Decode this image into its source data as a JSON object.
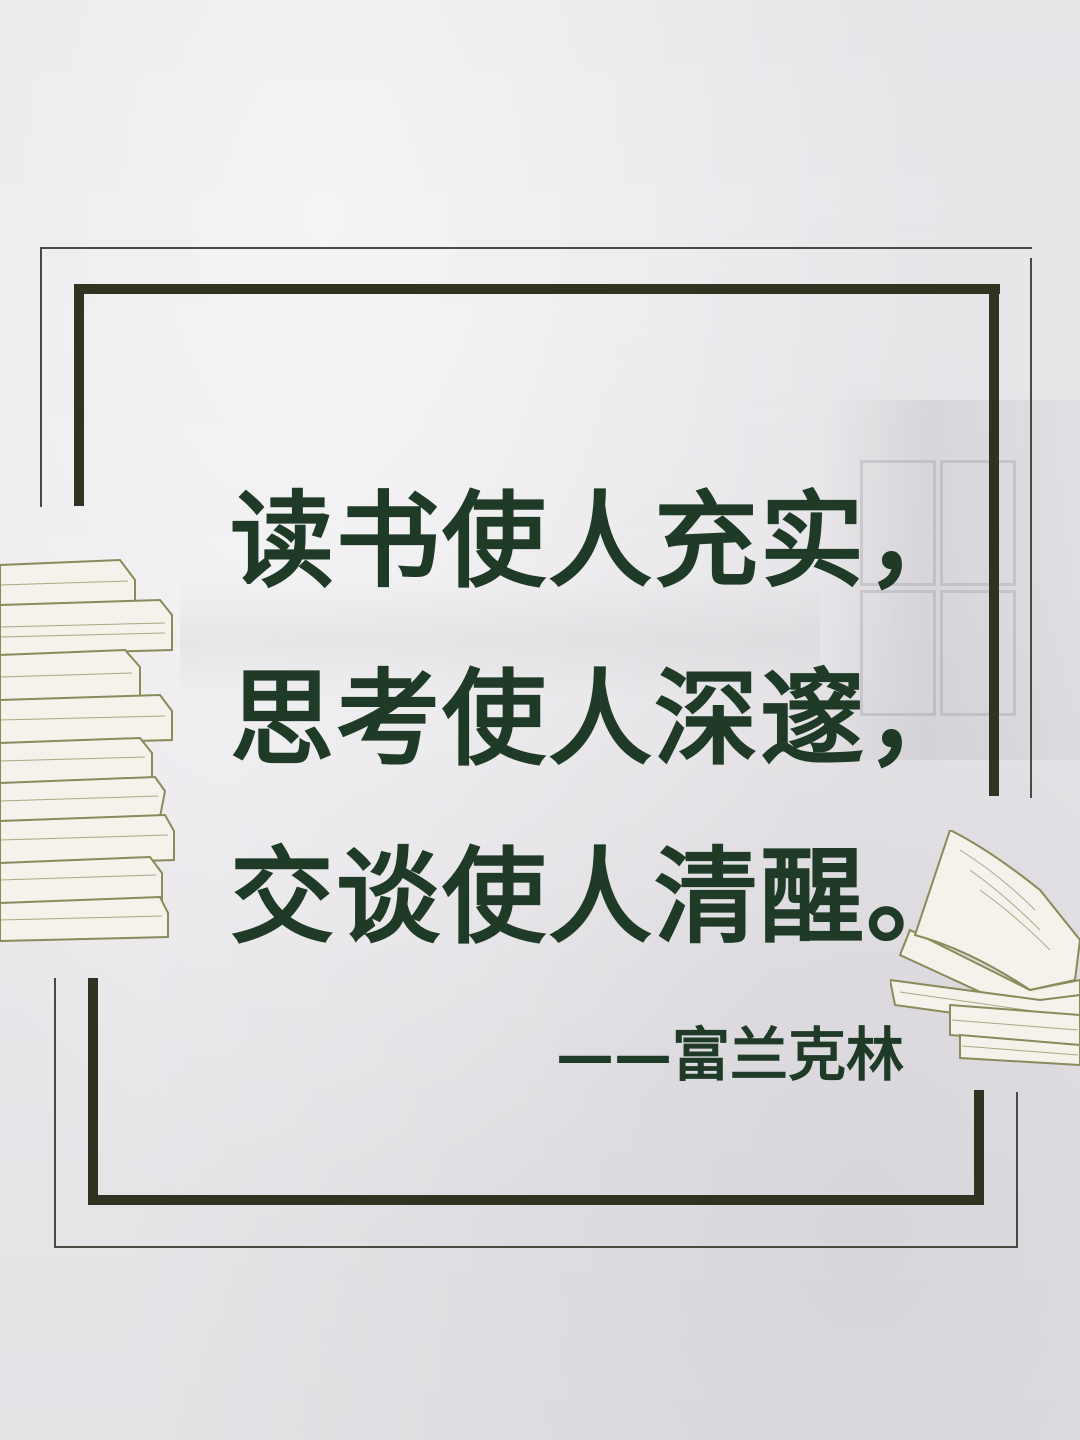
{
  "poster": {
    "quote_lines": [
      "读书使人充实，",
      "思考使人深邃，",
      "交谈使人清醒。"
    ],
    "attribution": "——富兰克林"
  },
  "colors": {
    "text": "#1f3a26",
    "frame": "#2f3322",
    "illustration": "#8a8a5a",
    "wall": "#e8e6e8"
  },
  "icons": {
    "left_illustration": "book-stack-icon",
    "right_illustration": "open-book-icon"
  }
}
